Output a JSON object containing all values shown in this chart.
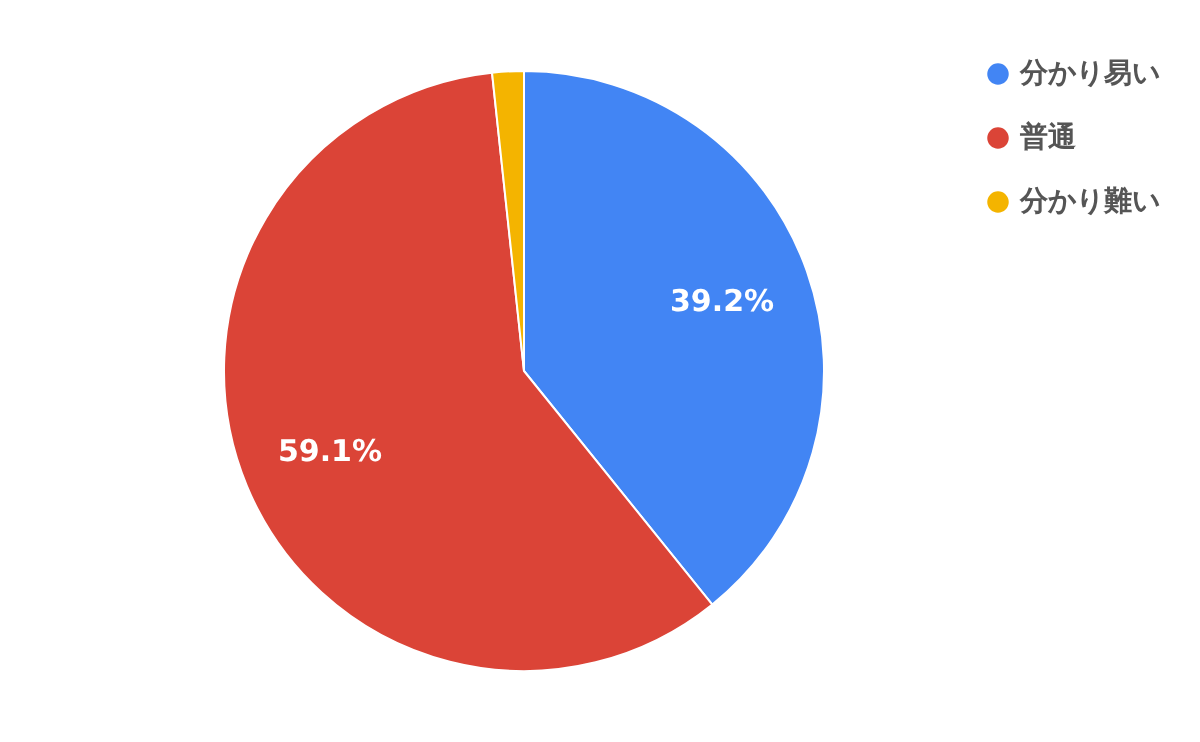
{
  "chart_data": {
    "type": "pie",
    "categories": [
      "分かり易い",
      "普通",
      "分かり難い"
    ],
    "values": [
      39.2,
      59.1,
      1.7
    ],
    "colors": [
      "#4285f4",
      "#db4437",
      "#f4b400"
    ],
    "value_labels": [
      "39.2%",
      "59.1%",
      null
    ],
    "legend": "top right"
  }
}
